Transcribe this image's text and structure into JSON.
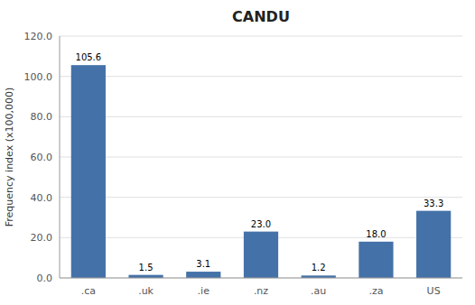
{
  "chart_data": {
    "type": "bar",
    "title": "CANDU",
    "categories": [
      ".ca",
      ".uk",
      ".ie",
      ".nz",
      ".au",
      ".za",
      "US"
    ],
    "values": [
      105.6,
      1.5,
      3.1,
      23.0,
      1.2,
      18.0,
      33.3
    ],
    "value_labels": [
      "105.6",
      "1.5",
      "3.1",
      "23.0",
      "1.2",
      "18.0",
      "33.3"
    ],
    "data_labels": true,
    "color": "#4472A8",
    "ylabel": "Frequency index (x100,000)",
    "ylim": [
      0,
      120
    ],
    "yticks": [
      {
        "value": 0,
        "label": "0.0"
      },
      {
        "value": 20,
        "label": "20.0"
      },
      {
        "value": 40,
        "label": "40.0"
      },
      {
        "value": 60,
        "label": "60.0"
      },
      {
        "value": 80,
        "label": "80.0"
      },
      {
        "value": 100,
        "label": "100.0"
      },
      {
        "value": 120,
        "label": "120.0"
      }
    ],
    "grid": true
  }
}
